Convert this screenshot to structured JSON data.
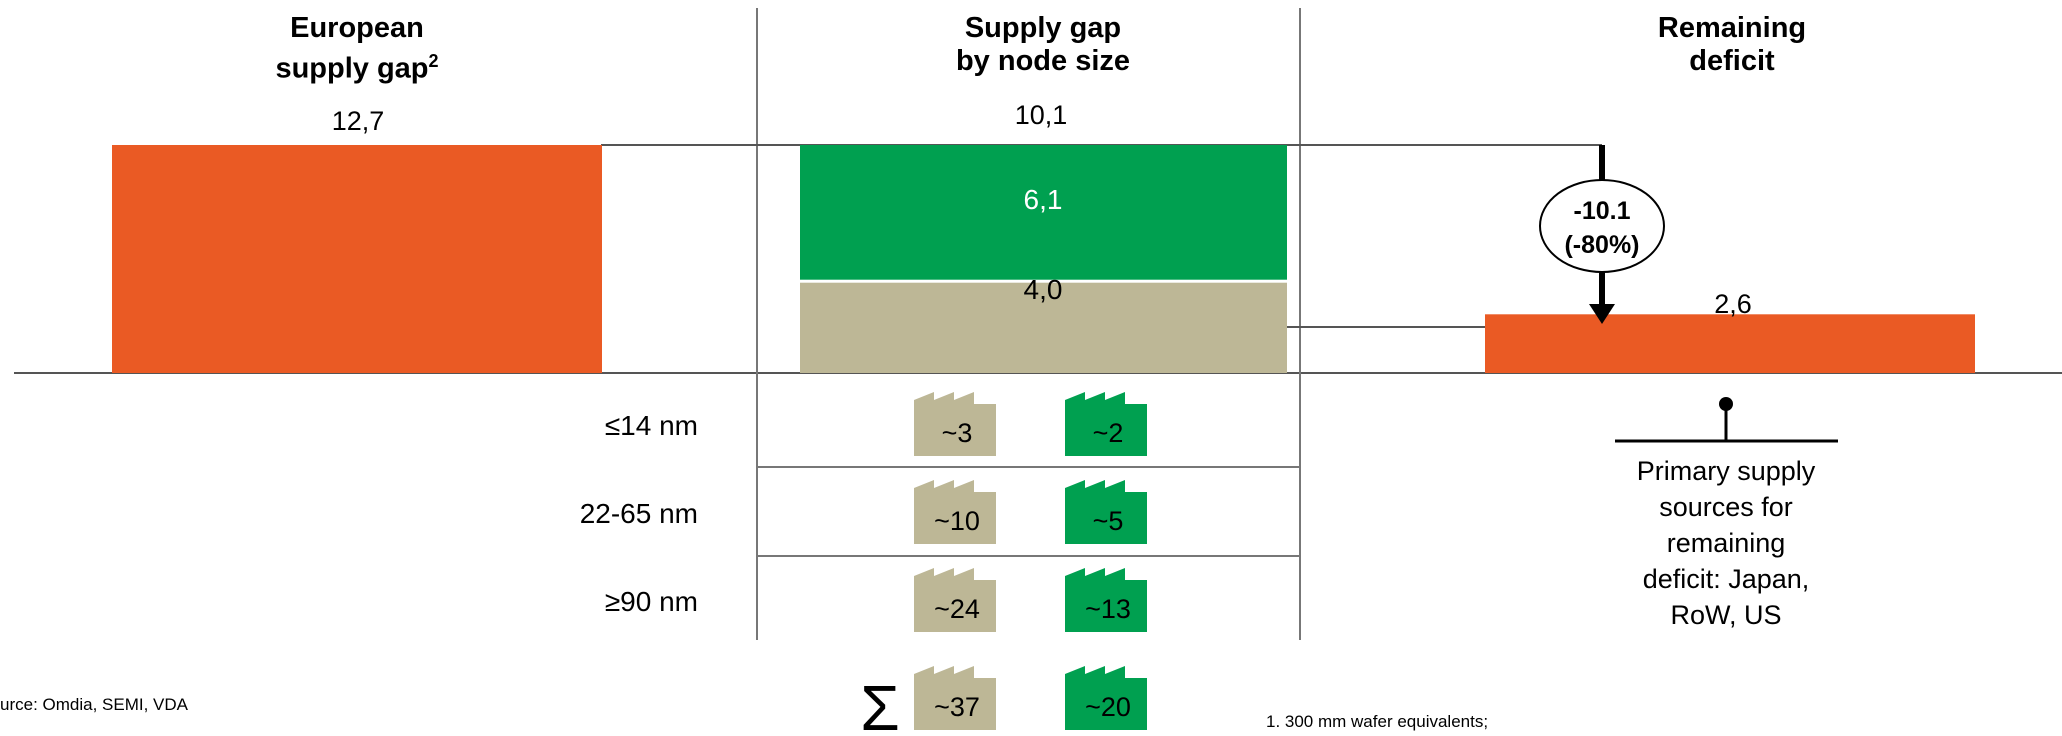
{
  "colors": {
    "orange": "#EA5A24",
    "green": "#00A050",
    "khaki": "#BDB796",
    "line": "#555555"
  },
  "icons": {
    "factory": "factory-icon",
    "sum": "sigma-sum-icon",
    "pin": "pin-icon"
  },
  "columns": {
    "left": {
      "title_line1": "European",
      "title_line2": "supply gap",
      "title_sup": "2"
    },
    "middle": {
      "title_line1": "Supply gap",
      "title_line2": "by node size"
    },
    "right": {
      "title_line1": "Remaining",
      "title_line2": "deficit"
    }
  },
  "chart_data": {
    "type": "bar",
    "value_format": "decimal comma",
    "bars": [
      {
        "name": "European supply gap",
        "value": 12.7,
        "label": "12,7",
        "color": "orange"
      },
      {
        "name": "Supply gap by node size",
        "total": 10.1,
        "label": "10,1",
        "segments": [
          {
            "value": 6.1,
            "label": "6,1",
            "color": "green"
          },
          {
            "value": 4.0,
            "label": "4,0",
            "color": "khaki"
          }
        ]
      },
      {
        "name": "Remaining deficit",
        "value": 2.6,
        "label": "2,6",
        "color": "orange"
      }
    ],
    "annotation": {
      "line1": "-10.1",
      "line2": "(-80%)"
    }
  },
  "table": {
    "rows": [
      {
        "label": "≤14 nm",
        "khaki": "~3",
        "green": "~2"
      },
      {
        "label": "22-65 nm",
        "khaki": "~10",
        "green": "~5"
      },
      {
        "label": "≥90 nm",
        "khaki": "~24",
        "green": "~13"
      }
    ],
    "sum": {
      "khaki": "~37",
      "green": "~20"
    }
  },
  "primary_sources": {
    "line1": "Primary supply",
    "line2": "sources for",
    "line3": "remaining",
    "line4": "deficit: Japan,",
    "line5": "RoW, US"
  },
  "footer": {
    "source": "urce: Omdia, SEMI, VDA",
    "footnote": "1. 300 mm wafer equivalents;"
  }
}
